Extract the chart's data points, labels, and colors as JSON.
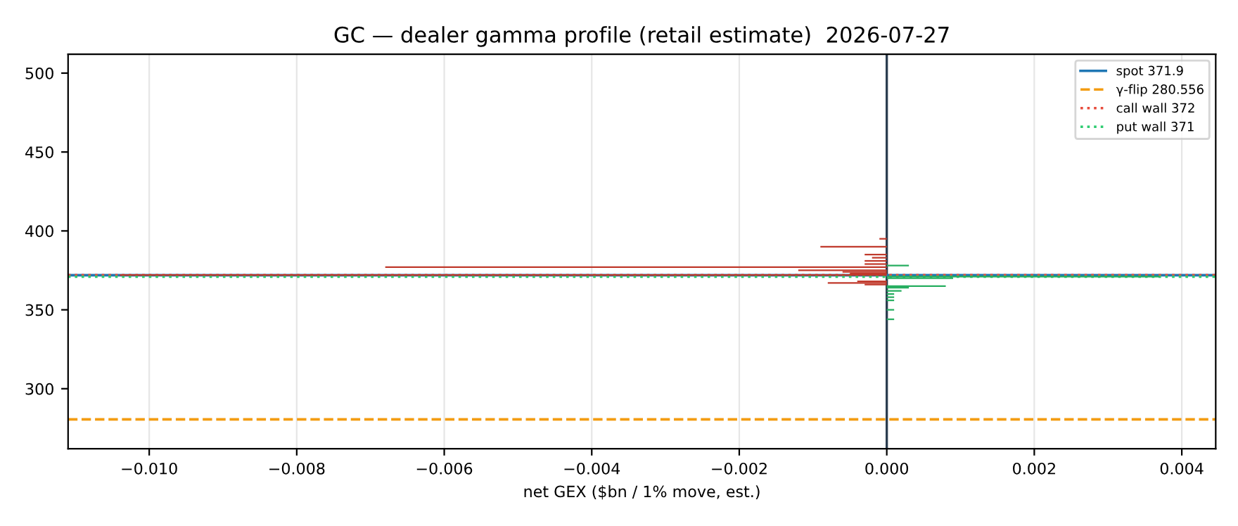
{
  "chart_data": {
    "type": "bar",
    "orientation": "horizontal",
    "title": "GC — dealer gamma profile (retail estimate)  2026-07-27",
    "xlabel": "net GEX ($bn / 1% move, est.)",
    "x": [
      395,
      390,
      385,
      383,
      381,
      379,
      378,
      377,
      375,
      374,
      373,
      372,
      371,
      370,
      368,
      367,
      366,
      365,
      364,
      362,
      360,
      358,
      356,
      350,
      344
    ],
    "values": [
      -0.0001,
      -0.0009,
      -0.0003,
      -0.0002,
      -0.0003,
      -0.0003,
      0.0003,
      -0.0068,
      -0.0012,
      -0.0006,
      -0.0005,
      -0.0104,
      0.0037,
      0.0009,
      -0.0004,
      -0.0008,
      -0.0003,
      0.0008,
      0.0003,
      0.0002,
      0.0001,
      0.0001,
      0.0001,
      0.0001,
      0.0001
    ],
    "colors": [
      "#c0392b",
      "#c0392b",
      "#c0392b",
      "#c0392b",
      "#c0392b",
      "#c0392b",
      "#27ae60",
      "#c0392b",
      "#c0392b",
      "#c0392b",
      "#c0392b",
      "#c0392b",
      "#27ae60",
      "#27ae60",
      "#c0392b",
      "#c0392b",
      "#c0392b",
      "#27ae60",
      "#27ae60",
      "#27ae60",
      "#27ae60",
      "#27ae60",
      "#27ae60",
      "#27ae60",
      "#27ae60"
    ],
    "xlim": [
      -0.0111,
      0.00446
    ],
    "xticks": [
      {
        "value": -0.01,
        "label": "−0.010"
      },
      {
        "value": -0.008,
        "label": "−0.008"
      },
      {
        "value": -0.006,
        "label": "−0.006"
      },
      {
        "value": -0.004,
        "label": "−0.004"
      },
      {
        "value": -0.002,
        "label": "−0.002"
      },
      {
        "value": 0,
        "label": "0.000"
      },
      {
        "value": 0.002,
        "label": "0.002"
      },
      {
        "value": 0.004,
        "label": "0.004"
      }
    ],
    "ylim": [
      262,
      512
    ],
    "yticks": [
      300,
      350,
      400,
      450,
      500
    ],
    "ref_lines": [
      {
        "axis": "x",
        "value": 0,
        "color": "#2c3e50",
        "line_style": "solid"
      },
      {
        "axis": "y",
        "value": 371.9,
        "label": "spot 371.9",
        "color": "#1f77b4",
        "line_style": "solid"
      },
      {
        "axis": "y",
        "value": 280.556,
        "label": "γ-flip 280.556",
        "color": "#f39c12",
        "line_style": "dashed"
      },
      {
        "axis": "y",
        "value": 372,
        "label": "call wall 372",
        "color": "#e74c3c",
        "line_style": "dotted"
      },
      {
        "axis": "y",
        "value": 371,
        "label": "put wall 371",
        "color": "#2ecc71",
        "line_style": "dotted"
      }
    ],
    "grid": "x",
    "legend": "top right"
  }
}
